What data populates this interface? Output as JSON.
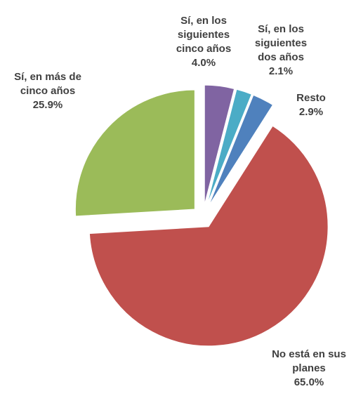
{
  "chart_data": {
    "type": "pie",
    "categories": [
      "Sí, en los siguientes cinco años",
      "Sí, en los siguientes dos años",
      "Resto",
      "No está en sus planes",
      "Sí, en más de cinco años"
    ],
    "values": [
      4.0,
      2.1,
      2.9,
      65.0,
      25.9
    ],
    "value_labels": [
      "4.0%",
      "2.1%",
      "2.9%",
      "65.0%",
      "25.9%"
    ],
    "colors": [
      "#8064a2",
      "#4bacc6",
      "#4f81bd",
      "#c0504d",
      "#9bbb59"
    ]
  }
}
